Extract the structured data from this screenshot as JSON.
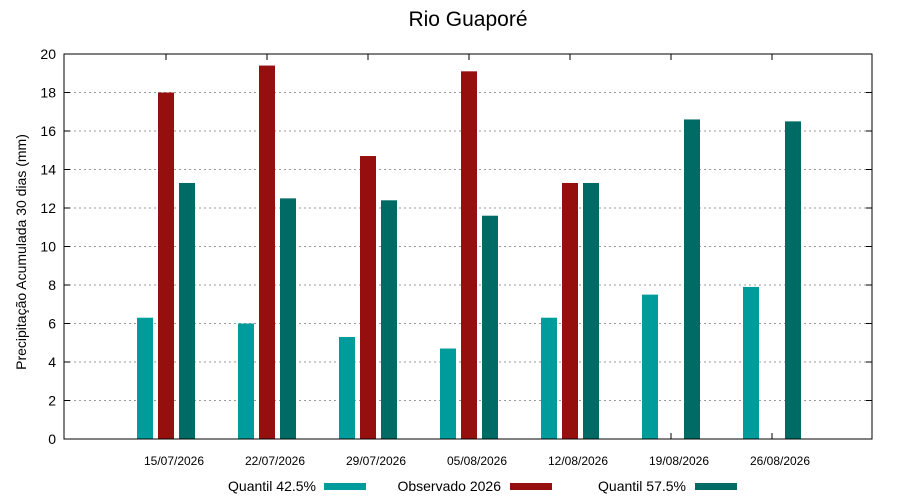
{
  "chart_data": {
    "type": "bar",
    "title": "Rio Guaporé",
    "xlabel": "",
    "ylabel": "Precipitação Acumulada 30 dias (mm)",
    "ylim": [
      0,
      20
    ],
    "yticks": [
      0,
      2,
      4,
      6,
      8,
      10,
      12,
      14,
      16,
      18,
      20
    ],
    "grid": "horizontal dotted",
    "legend_position": "bottom",
    "categories": [
      "15/07/2026",
      "22/07/2026",
      "29/07/2026",
      "05/08/2026",
      "12/08/2026",
      "19/08/2026",
      "26/08/2026"
    ],
    "series": [
      {
        "name": "Quantil 42.5%",
        "color": "#009b9b",
        "values": [
          6.3,
          6.0,
          5.3,
          4.7,
          6.3,
          7.5,
          7.9
        ]
      },
      {
        "name": "Observado 2026",
        "color": "#960f0f",
        "values": [
          18.0,
          19.4,
          14.7,
          19.1,
          13.3,
          null,
          null
        ]
      },
      {
        "name": "Quantil 57.5%",
        "color": "#006b64",
        "values": [
          13.3,
          12.5,
          12.4,
          11.6,
          13.3,
          16.6,
          16.5
        ]
      }
    ]
  }
}
